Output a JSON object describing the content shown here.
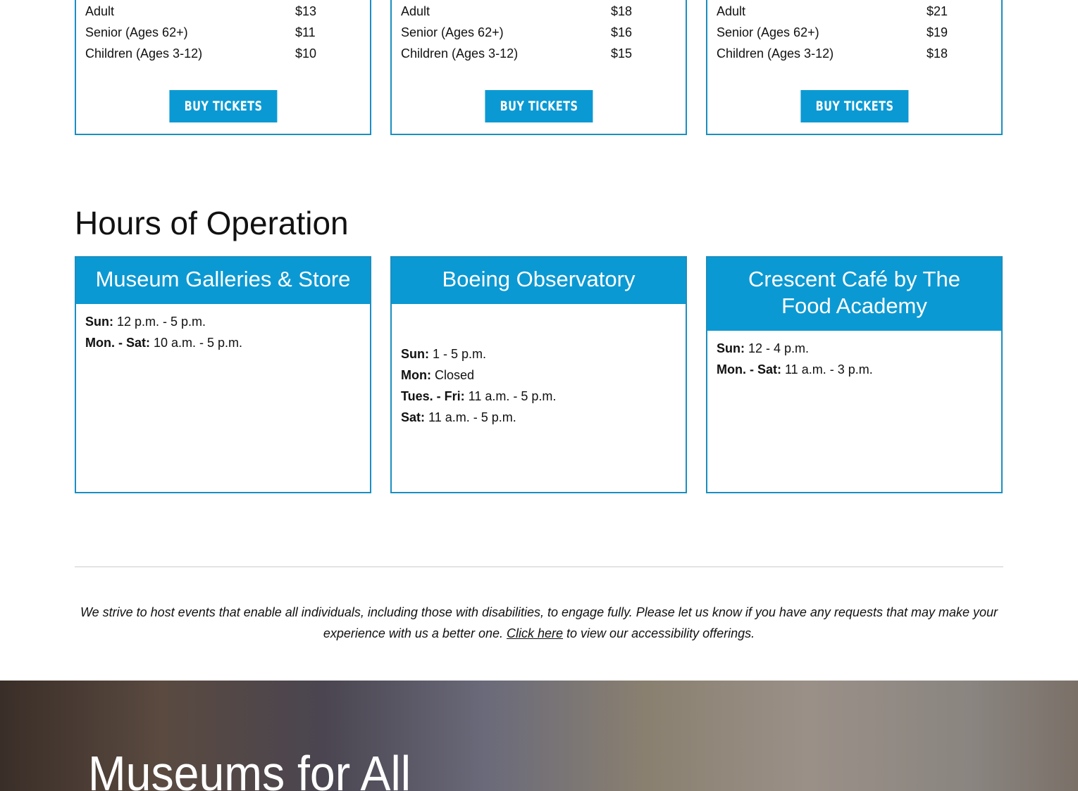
{
  "ticket_cards": [
    {
      "rows": [
        {
          "label": "Adult",
          "price": "$13"
        },
        {
          "label": "Senior (Ages 62+)",
          "price": "$11"
        },
        {
          "label": "Children (Ages 3-12)",
          "price": "$10"
        }
      ],
      "button": "BUY TICKETS"
    },
    {
      "rows": [
        {
          "label": "Adult",
          "price": "$18"
        },
        {
          "label": "Senior (Ages 62+)",
          "price": "$16"
        },
        {
          "label": "Children (Ages 3-12)",
          "price": "$15"
        }
      ],
      "button": "BUY TICKETS"
    },
    {
      "rows": [
        {
          "label": "Adult",
          "price": "$21"
        },
        {
          "label": "Senior (Ages 62+)",
          "price": "$19"
        },
        {
          "label": "Children (Ages 3-12)",
          "price": "$18"
        }
      ],
      "button": "BUY TICKETS"
    }
  ],
  "hours": {
    "title": "Hours of Operation",
    "cards": [
      {
        "title": "Museum Galleries & Store",
        "lines": [
          {
            "day": "Sun:",
            "time": " 12 p.m. - 5 p.m."
          },
          {
            "day": "Mon. - Sat:",
            "time": " 10 a.m. - 5 p.m."
          }
        ]
      },
      {
        "title": "Boeing Observatory",
        "lines": [
          {
            "day": "Sun:",
            "time": " 1 - 5 p.m."
          },
          {
            "day": "Mon:",
            "time": " Closed"
          },
          {
            "day": "Tues. - Fri:",
            "time": " 11 a.m. - 5 p.m."
          },
          {
            "day": "Sat:",
            "time": " 11 a.m. - 5 p.m."
          }
        ]
      },
      {
        "title": "Crescent Café by The Food Academy",
        "lines": [
          {
            "day": "Sun:",
            "time": " 12 - 4 p.m."
          },
          {
            "day": "Mon. - Sat:",
            "time": " 11 a.m. - 3 p.m."
          }
        ]
      }
    ]
  },
  "accessibility": {
    "before": "We strive to host events that enable all individuals, including those with disabilities, to engage fully. Please let us know if you have any requests that may make your experience with us a better one. ",
    "link": "Click here",
    "after": " to view our accessibility offerings."
  },
  "hero": {
    "title": "Museums for All"
  },
  "colors": {
    "accent": "#0b99d3",
    "border": "#1a8fc0"
  }
}
